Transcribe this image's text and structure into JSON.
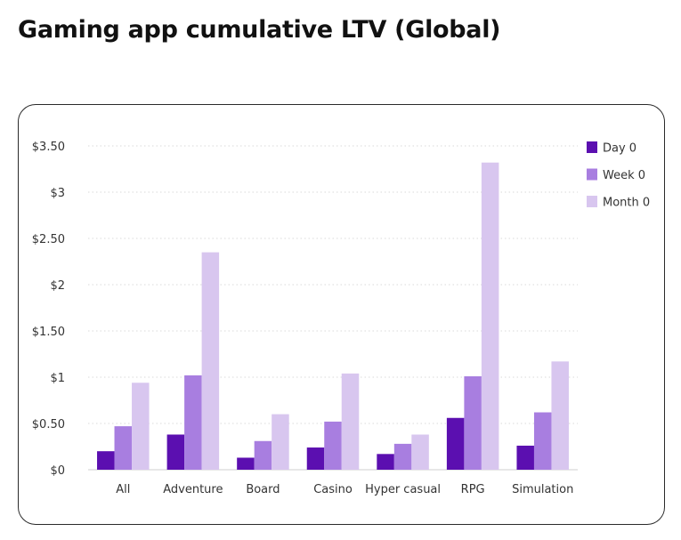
{
  "page": {
    "title": "Gaming app cumulative LTV (Global)"
  },
  "colors": {
    "Day 0": "#5b0fb0",
    "Week 0": "#a87ee0",
    "Month 0": "#d8c6ef",
    "grid": "#d9d9d9",
    "axis": "#cfcfcf"
  },
  "chart_data": {
    "type": "bar",
    "title": "Gaming app cumulative LTV (Global)",
    "xlabel": "",
    "ylabel": "",
    "ylim": [
      0,
      3.5
    ],
    "yticks": [
      0,
      0.5,
      1,
      1.5,
      2,
      2.5,
      3,
      3.5
    ],
    "ytick_labels": [
      "$0",
      "$0.50",
      "$1",
      "$1.50",
      "$2",
      "$2.50",
      "$3",
      "$3.50"
    ],
    "grid": true,
    "legend_position": "top-right",
    "categories": [
      "All",
      "Adventure",
      "Board",
      "Casino",
      "Hyper casual",
      "RPG",
      "Simulation"
    ],
    "series": [
      {
        "name": "Day 0",
        "values": [
          0.2,
          0.38,
          0.13,
          0.24,
          0.17,
          0.56,
          0.26
        ]
      },
      {
        "name": "Week 0",
        "values": [
          0.47,
          1.02,
          0.31,
          0.52,
          0.28,
          1.01,
          0.62
        ]
      },
      {
        "name": "Month 0",
        "values": [
          0.94,
          2.35,
          0.6,
          1.04,
          0.38,
          3.32,
          1.17
        ]
      }
    ]
  }
}
